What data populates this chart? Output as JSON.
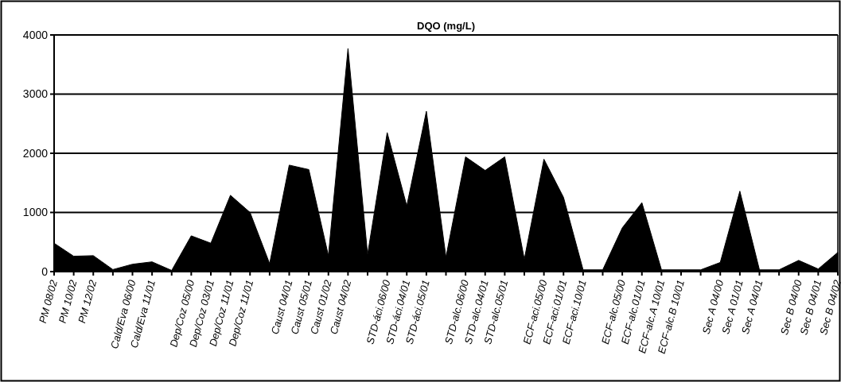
{
  "chart_data": {
    "type": "area",
    "title": "DQO (mg/L)",
    "categories": [
      "PM 08/02",
      "PM 10/02",
      "PM 12/02",
      null,
      "Cald/Eva 06/00",
      "Cald/Eva 11/01",
      null,
      "Dep/Coz 05/00",
      "Dep/Coz 03/01",
      "Dep/Coz 11/01",
      "Dep/Coz 11/01",
      null,
      "Caust 04/01",
      "Caust 05/01",
      "Caust 01/02",
      "Caust 04/02",
      null,
      "STD-áci.06/00",
      "STD-áci.04/01",
      "STD-áci.05/01",
      null,
      "STD-alc.06/00",
      "STD-alc.04/01",
      "STD-alc.05/01",
      null,
      "ECF-aci.05/00",
      "ECF-aci.01/01",
      "ECF-aci.10/01",
      null,
      "ECF-alc.05/00",
      "ECF-alc.01/01",
      "ECF-alc.A 10/01",
      "ECF-alc.B 10/01",
      null,
      "Sec A 04/00",
      "Sec A 01/01",
      "Sec A 04/01",
      null,
      "Sec B 04/00",
      "Sec B 04/01",
      "Sec B 04/02"
    ],
    "values": [
      480,
      260,
      270,
      35,
      125,
      165,
      20,
      605,
      480,
      1290,
      1000,
      135,
      1800,
      1725,
      270,
      3770,
      290,
      2350,
      1110,
      2710,
      245,
      1940,
      1710,
      1940,
      210,
      1900,
      1255,
      30,
      30,
      740,
      1165,
      30,
      30,
      30,
      155,
      1360,
      30,
      30,
      190,
      45,
      325
    ],
    "color": "#000000",
    "ylim": [
      0,
      4000
    ],
    "yticks": [
      0,
      1000,
      2000,
      3000,
      4000
    ],
    "grid": "y"
  }
}
